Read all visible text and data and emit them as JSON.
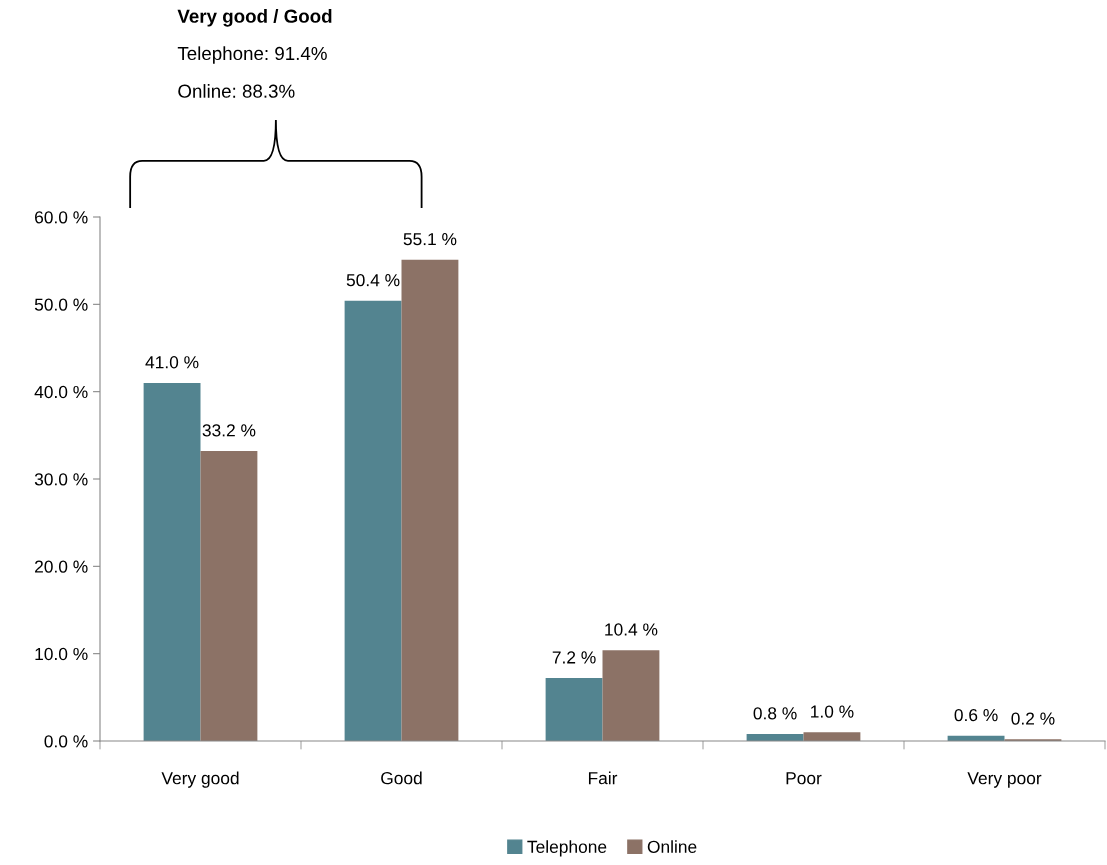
{
  "chart_data": {
    "type": "bar",
    "categories": [
      "Very good",
      "Good",
      "Fair",
      "Poor",
      "Very poor"
    ],
    "series": [
      {
        "name": "Telephone",
        "color": "#538490",
        "values": [
          41.0,
          50.4,
          7.2,
          0.8,
          0.6
        ],
        "value_labels": [
          "41.0 %",
          "50.4 %",
          "7.2 %",
          "0.8 %",
          "0.6 %"
        ]
      },
      {
        "name": "Online",
        "color": "#8c7266",
        "values": [
          33.2,
          55.1,
          10.4,
          1.0,
          0.2
        ],
        "value_labels": [
          "33.2 %",
          "55.1 %",
          "10.4 %",
          "1.0 %",
          "0.2 %"
        ]
      }
    ],
    "ylim": [
      0,
      60
    ],
    "yticks": [
      {
        "value": 0,
        "label": "0.0 %"
      },
      {
        "value": 10,
        "label": "10.0 %"
      },
      {
        "value": 20,
        "label": "20.0 %"
      },
      {
        "value": 30,
        "label": "30.0 %"
      },
      {
        "value": 40,
        "label": "40.0 %"
      },
      {
        "value": 50,
        "label": "50.0 %"
      },
      {
        "value": 60,
        "label": "60.0 %"
      }
    ],
    "annotations": [
      "Very good / Good",
      "Telephone: 91.4%",
      "Online: 88.3%"
    ],
    "grid": false,
    "legend": "bottom"
  }
}
